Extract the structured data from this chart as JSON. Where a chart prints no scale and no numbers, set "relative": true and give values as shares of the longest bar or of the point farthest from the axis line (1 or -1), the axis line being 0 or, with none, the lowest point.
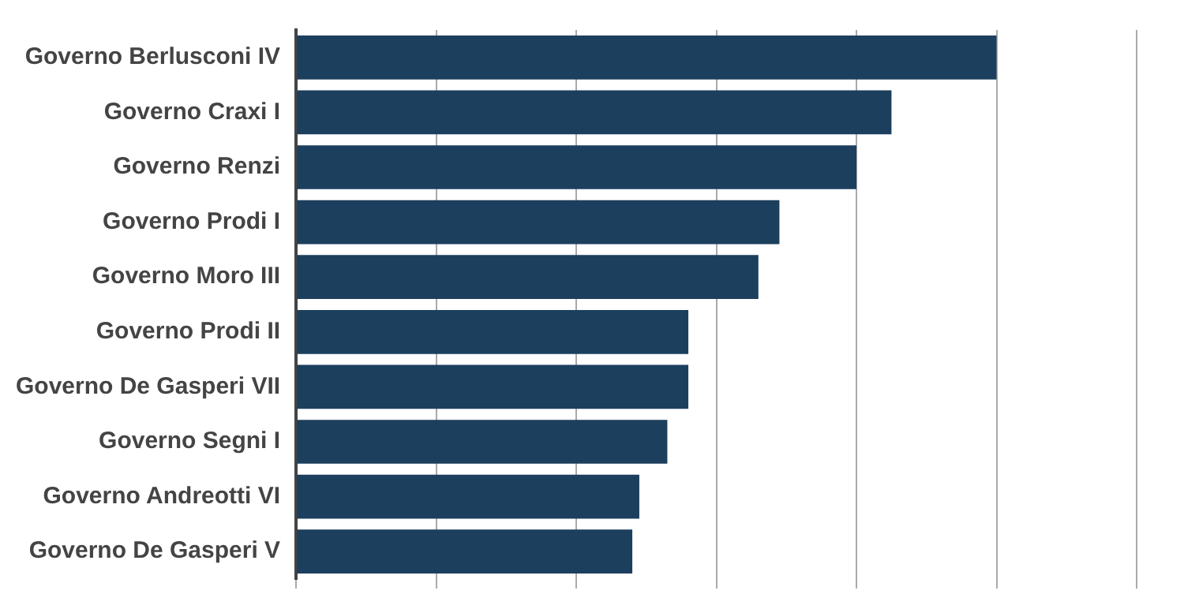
{
  "chart_data": {
    "type": "bar",
    "orientation": "horizontal",
    "relative": true,
    "grid": "x",
    "legend": false,
    "categories": [
      "Governo Berlusconi IV",
      "Governo Craxi I",
      "Governo Renzi",
      "Governo Prodi I",
      "Governo Moro III",
      "Governo Prodi II",
      "Governo De Gasperi VII",
      "Governo Segni I",
      "Governo Andreotti VI",
      "Governo De Gasperi V"
    ],
    "values": [
      1,
      0.85,
      0.8,
      0.69,
      0.66,
      0.56,
      0.56,
      0.53,
      0.49,
      0.48
    ],
    "color": "#1c3f5e"
  }
}
